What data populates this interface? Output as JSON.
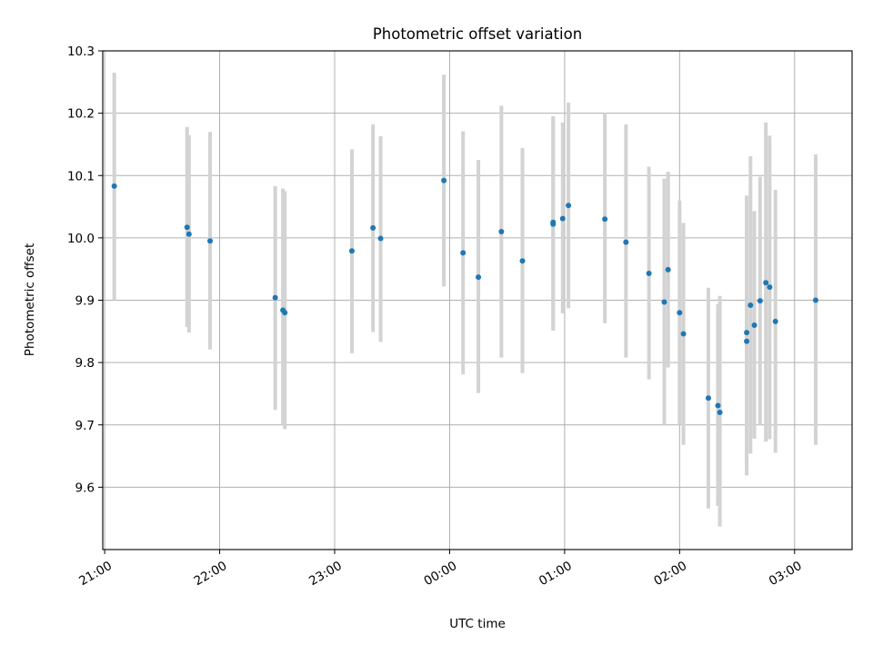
{
  "chart_data": {
    "type": "scatter",
    "title": "Photometric offset variation",
    "xlabel": "UTC time",
    "ylabel": "Photometric offset",
    "x_axis_kind": "time",
    "xlim": [
      "20:59",
      "03:30"
    ],
    "ylim": [
      9.5,
      10.3
    ],
    "x_ticks": [
      "21:00",
      "22:00",
      "23:00",
      "00:00",
      "01:00",
      "02:00",
      "03:00"
    ],
    "y_ticks": [
      9.6,
      9.7,
      9.8,
      9.9,
      10.0,
      10.1,
      10.2,
      10.3
    ],
    "y_tick_labels": [
      "9.6",
      "9.7",
      "9.8",
      "9.9",
      "10.0",
      "10.1",
      "10.2",
      "10.3"
    ],
    "grid": true,
    "colors": {
      "marker": "#1f77b4",
      "errorbar": "#d3d3d3",
      "grid": "#b0b0b0"
    },
    "points": [
      {
        "x": "21:05",
        "y": 10.083,
        "ylo": 9.9,
        "yhi": 10.265
      },
      {
        "x": "21:43",
        "y": 10.017,
        "ylo": 9.857,
        "yhi": 10.178
      },
      {
        "x": "21:44",
        "y": 10.006,
        "ylo": 9.848,
        "yhi": 10.165
      },
      {
        "x": "21:55",
        "y": 9.995,
        "ylo": 9.821,
        "yhi": 10.17
      },
      {
        "x": "22:29",
        "y": 9.904,
        "ylo": 9.724,
        "yhi": 10.083
      },
      {
        "x": "22:33",
        "y": 9.884,
        "ylo": 9.7,
        "yhi": 10.079
      },
      {
        "x": "22:34",
        "y": 9.88,
        "ylo": 9.693,
        "yhi": 10.075
      },
      {
        "x": "23:09",
        "y": 9.979,
        "ylo": 9.815,
        "yhi": 10.142
      },
      {
        "x": "23:20",
        "y": 10.016,
        "ylo": 9.849,
        "yhi": 10.182
      },
      {
        "x": "23:24",
        "y": 9.999,
        "ylo": 9.833,
        "yhi": 10.163
      },
      {
        "x": "23:57",
        "y": 10.092,
        "ylo": 9.922,
        "yhi": 10.262
      },
      {
        "x": "00:07",
        "y": 9.976,
        "ylo": 9.781,
        "yhi": 10.171
      },
      {
        "x": "00:15",
        "y": 9.937,
        "ylo": 9.751,
        "yhi": 10.125
      },
      {
        "x": "00:27",
        "y": 10.01,
        "ylo": 9.808,
        "yhi": 10.212
      },
      {
        "x": "00:38",
        "y": 9.963,
        "ylo": 9.783,
        "yhi": 10.144
      },
      {
        "x": "00:54",
        "y": 10.025,
        "ylo": 9.851,
        "yhi": 10.195
      },
      {
        "x": "00:54",
        "y": 10.022,
        "ylo": 9.855,
        "yhi": 10.192
      },
      {
        "x": "00:59",
        "y": 10.031,
        "ylo": 9.879,
        "yhi": 10.185
      },
      {
        "x": "01:02",
        "y": 10.052,
        "ylo": 9.887,
        "yhi": 10.217
      },
      {
        "x": "01:21",
        "y": 10.03,
        "ylo": 9.863,
        "yhi": 10.2
      },
      {
        "x": "01:32",
        "y": 9.993,
        "ylo": 9.808,
        "yhi": 10.182
      },
      {
        "x": "01:44",
        "y": 9.943,
        "ylo": 9.773,
        "yhi": 10.114
      },
      {
        "x": "01:52",
        "y": 9.897,
        "ylo": 9.7,
        "yhi": 10.095
      },
      {
        "x": "01:54",
        "y": 9.949,
        "ylo": 9.792,
        "yhi": 10.106
      },
      {
        "x": "02:00",
        "y": 9.88,
        "ylo": 9.7,
        "yhi": 10.06
      },
      {
        "x": "02:02",
        "y": 9.846,
        "ylo": 9.668,
        "yhi": 10.024
      },
      {
        "x": "02:15",
        "y": 9.743,
        "ylo": 9.566,
        "yhi": 9.92
      },
      {
        "x": "02:20",
        "y": 9.731,
        "ylo": 9.57,
        "yhi": 9.894
      },
      {
        "x": "02:21",
        "y": 9.72,
        "ylo": 9.537,
        "yhi": 9.907
      },
      {
        "x": "02:35",
        "y": 9.834,
        "ylo": 9.619,
        "yhi": 10.063
      },
      {
        "x": "02:35",
        "y": 9.848,
        "ylo": 9.63,
        "yhi": 10.068
      },
      {
        "x": "02:37",
        "y": 9.892,
        "ylo": 9.654,
        "yhi": 10.131
      },
      {
        "x": "02:39",
        "y": 9.86,
        "ylo": 9.678,
        "yhi": 10.043
      },
      {
        "x": "02:42",
        "y": 9.899,
        "ylo": 9.7,
        "yhi": 10.098
      },
      {
        "x": "02:45",
        "y": 9.928,
        "ylo": 9.673,
        "yhi": 10.185
      },
      {
        "x": "02:47",
        "y": 9.921,
        "ylo": 9.677,
        "yhi": 10.164
      },
      {
        "x": "02:50",
        "y": 9.866,
        "ylo": 9.655,
        "yhi": 10.077
      },
      {
        "x": "03:11",
        "y": 9.9,
        "ylo": 9.668,
        "yhi": 10.134
      }
    ]
  }
}
